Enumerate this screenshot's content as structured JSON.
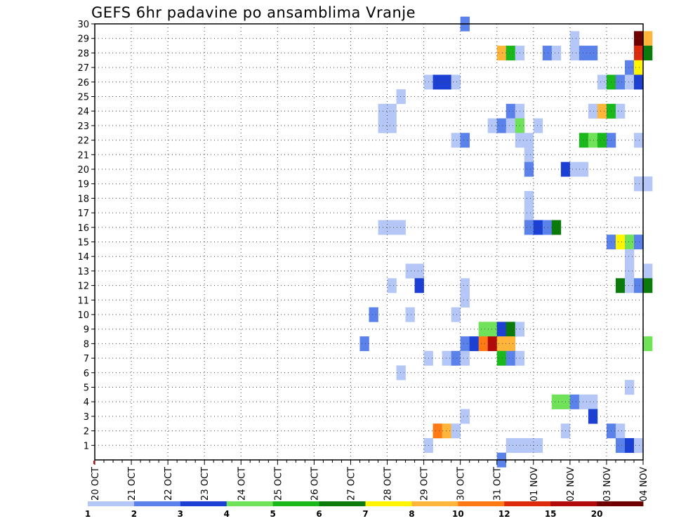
{
  "chart_data": {
    "type": "heatmap",
    "title": "GEFS 6hr padavine po ansamblima Vranje",
    "xlabel": "",
    "ylabel": "",
    "x_ticks": [
      "20 OCT",
      "21 OCT",
      "22 OCT",
      "23 OCT",
      "24 OCT",
      "25 OCT",
      "26 OCT",
      "27 OCT",
      "28 OCT",
      "29 OCT",
      "30 OCT",
      "31 OCT",
      "01 NOV",
      "02 NOV",
      "03 NOV",
      "04 NOV"
    ],
    "x_range_steps": [
      0,
      60
    ],
    "y_ticks": [
      1,
      2,
      3,
      4,
      5,
      6,
      7,
      8,
      9,
      10,
      11,
      12,
      13,
      14,
      15,
      16,
      17,
      18,
      19,
      20,
      21,
      22,
      23,
      24,
      25,
      26,
      27,
      28,
      29,
      30
    ],
    "ylim": [
      0,
      30
    ],
    "grid": true,
    "colorbar": {
      "colors": [
        "#b4c7f7",
        "#5a82ea",
        "#1c3fd4",
        "#6fe25a",
        "#1ab81a",
        "#0a7a0a",
        "#fff500",
        "#ffb43a",
        "#ff7a14",
        "#dc2a0a",
        "#b20a0a",
        "#6e0000"
      ],
      "labels": [
        "1",
        "2",
        "3",
        "4",
        "5",
        "6",
        "7",
        "8",
        "10",
        "12",
        "15",
        "20"
      ]
    },
    "cells": [
      {
        "member": 30,
        "step": 40,
        "level": 1
      },
      {
        "member": 29,
        "step": 59,
        "level": 11
      },
      {
        "member": 29,
        "step": 60,
        "level": 7
      },
      {
        "member": 28,
        "step": 44,
        "level": 7
      },
      {
        "member": 28,
        "step": 45,
        "level": 4
      },
      {
        "member": 28,
        "step": 46,
        "level": 0
      },
      {
        "member": 28,
        "step": 49,
        "level": 1
      },
      {
        "member": 28,
        "step": 50,
        "level": 0
      },
      {
        "member": 28,
        "step": 52,
        "level": 0
      },
      {
        "member": 28,
        "step": 53,
        "level": 1
      },
      {
        "member": 28,
        "step": 54,
        "level": 1
      },
      {
        "member": 28,
        "step": 59,
        "level": 9
      },
      {
        "member": 28,
        "step": 60,
        "level": 5
      },
      {
        "member": 29,
        "step": 52,
        "level": 0
      },
      {
        "member": 27,
        "step": 58,
        "level": 1
      },
      {
        "member": 27,
        "step": 59,
        "level": 6
      },
      {
        "member": 26,
        "step": 36,
        "level": 0
      },
      {
        "member": 26,
        "step": 37,
        "level": 2
      },
      {
        "member": 26,
        "step": 38,
        "level": 2
      },
      {
        "member": 26,
        "step": 39,
        "level": 0
      },
      {
        "member": 26,
        "step": 55,
        "level": 0
      },
      {
        "member": 26,
        "step": 56,
        "level": 4
      },
      {
        "member": 26,
        "step": 57,
        "level": 1
      },
      {
        "member": 26,
        "step": 58,
        "level": 0
      },
      {
        "member": 26,
        "step": 59,
        "level": 2
      },
      {
        "member": 25,
        "step": 33,
        "level": 0
      },
      {
        "member": 24,
        "step": 31,
        "level": 0
      },
      {
        "member": 24,
        "step": 32,
        "level": 0
      },
      {
        "member": 24,
        "step": 45,
        "level": 1
      },
      {
        "member": 24,
        "step": 46,
        "level": 0
      },
      {
        "member": 24,
        "step": 54,
        "level": 0
      },
      {
        "member": 24,
        "step": 55,
        "level": 7
      },
      {
        "member": 24,
        "step": 56,
        "level": 4
      },
      {
        "member": 24,
        "step": 57,
        "level": 0
      },
      {
        "member": 23,
        "step": 31,
        "level": 0
      },
      {
        "member": 23,
        "step": 32,
        "level": 0
      },
      {
        "member": 23,
        "step": 43,
        "level": 0
      },
      {
        "member": 23,
        "step": 44,
        "level": 1
      },
      {
        "member": 23,
        "step": 45,
        "level": 0
      },
      {
        "member": 23,
        "step": 46,
        "level": 3
      },
      {
        "member": 23,
        "step": 48,
        "level": 0
      },
      {
        "member": 22,
        "step": 39,
        "level": 0
      },
      {
        "member": 22,
        "step": 40,
        "level": 1
      },
      {
        "member": 22,
        "step": 46,
        "level": 0
      },
      {
        "member": 22,
        "step": 47,
        "level": 0
      },
      {
        "member": 22,
        "step": 53,
        "level": 4
      },
      {
        "member": 22,
        "step": 54,
        "level": 3
      },
      {
        "member": 22,
        "step": 55,
        "level": 4
      },
      {
        "member": 22,
        "step": 56,
        "level": 1
      },
      {
        "member": 22,
        "step": 59,
        "level": 0
      },
      {
        "member": 21,
        "step": 47,
        "level": 0
      },
      {
        "member": 20,
        "step": 47,
        "level": 1
      },
      {
        "member": 20,
        "step": 51,
        "level": 2
      },
      {
        "member": 20,
        "step": 52,
        "level": 0
      },
      {
        "member": 20,
        "step": 53,
        "level": 0
      },
      {
        "member": 19,
        "step": 59,
        "level": 0
      },
      {
        "member": 19,
        "step": 60,
        "level": 0
      },
      {
        "member": 18,
        "step": 47,
        "level": 0
      },
      {
        "member": 17,
        "step": 47,
        "level": 0
      },
      {
        "member": 16,
        "step": 31,
        "level": 0
      },
      {
        "member": 16,
        "step": 32,
        "level": 0
      },
      {
        "member": 16,
        "step": 33,
        "level": 0
      },
      {
        "member": 16,
        "step": 47,
        "level": 1
      },
      {
        "member": 16,
        "step": 48,
        "level": 2
      },
      {
        "member": 16,
        "step": 49,
        "level": 1
      },
      {
        "member": 16,
        "step": 50,
        "level": 5
      },
      {
        "member": 15,
        "step": 56,
        "level": 1
      },
      {
        "member": 15,
        "step": 57,
        "level": 6
      },
      {
        "member": 15,
        "step": 58,
        "level": 3
      },
      {
        "member": 15,
        "step": 59,
        "level": 1
      },
      {
        "member": 14,
        "step": 58,
        "level": 0
      },
      {
        "member": 13,
        "step": 34,
        "level": 0
      },
      {
        "member": 13,
        "step": 35,
        "level": 0
      },
      {
        "member": 13,
        "step": 58,
        "level": 0
      },
      {
        "member": 13,
        "step": 60,
        "level": 0
      },
      {
        "member": 12,
        "step": 32,
        "level": 0
      },
      {
        "member": 12,
        "step": 35,
        "level": 2
      },
      {
        "member": 12,
        "step": 40,
        "level": 0
      },
      {
        "member": 12,
        "step": 57,
        "level": 5
      },
      {
        "member": 12,
        "step": 58,
        "level": 0
      },
      {
        "member": 12,
        "step": 59,
        "level": 1
      },
      {
        "member": 12,
        "step": 60,
        "level": 5
      },
      {
        "member": 11,
        "step": 40,
        "level": 0
      },
      {
        "member": 10,
        "step": 30,
        "level": 1
      },
      {
        "member": 10,
        "step": 34,
        "level": 0
      },
      {
        "member": 10,
        "step": 39,
        "level": 0
      },
      {
        "member": 9,
        "step": 42,
        "level": 3
      },
      {
        "member": 9,
        "step": 43,
        "level": 3
      },
      {
        "member": 9,
        "step": 44,
        "level": 2
      },
      {
        "member": 9,
        "step": 45,
        "level": 5
      },
      {
        "member": 9,
        "step": 46,
        "level": 0
      },
      {
        "member": 8,
        "step": 29,
        "level": 1
      },
      {
        "member": 8,
        "step": 40,
        "level": 1
      },
      {
        "member": 8,
        "step": 41,
        "level": 2
      },
      {
        "member": 8,
        "step": 42,
        "level": 8
      },
      {
        "member": 8,
        "step": 43,
        "level": 10
      },
      {
        "member": 8,
        "step": 44,
        "level": 7
      },
      {
        "member": 8,
        "step": 45,
        "level": 7
      },
      {
        "member": 8,
        "step": 60,
        "level": 3
      },
      {
        "member": 7,
        "step": 36,
        "level": 0
      },
      {
        "member": 7,
        "step": 38,
        "level": 0
      },
      {
        "member": 7,
        "step": 39,
        "level": 1
      },
      {
        "member": 7,
        "step": 40,
        "level": 0
      },
      {
        "member": 7,
        "step": 44,
        "level": 4
      },
      {
        "member": 7,
        "step": 45,
        "level": 1
      },
      {
        "member": 7,
        "step": 46,
        "level": 0
      },
      {
        "member": 6,
        "step": 33,
        "level": 0
      },
      {
        "member": 5,
        "step": 58,
        "level": 0
      },
      {
        "member": 4,
        "step": 50,
        "level": 3
      },
      {
        "member": 4,
        "step": 51,
        "level": 3
      },
      {
        "member": 4,
        "step": 52,
        "level": 1
      },
      {
        "member": 4,
        "step": 53,
        "level": 0
      },
      {
        "member": 4,
        "step": 54,
        "level": 0
      },
      {
        "member": 3,
        "step": 40,
        "level": 0
      },
      {
        "member": 3,
        "step": 54,
        "level": 2
      },
      {
        "member": 2,
        "step": 37,
        "level": 8
      },
      {
        "member": 2,
        "step": 38,
        "level": 7
      },
      {
        "member": 2,
        "step": 39,
        "level": 0
      },
      {
        "member": 2,
        "step": 51,
        "level": 0
      },
      {
        "member": 2,
        "step": 56,
        "level": 1
      },
      {
        "member": 2,
        "step": 57,
        "level": 0
      },
      {
        "member": 1,
        "step": 36,
        "level": 0
      },
      {
        "member": 1,
        "step": 45,
        "level": 0
      },
      {
        "member": 1,
        "step": 46,
        "level": 0
      },
      {
        "member": 1,
        "step": 47,
        "level": 0
      },
      {
        "member": 1,
        "step": 48,
        "level": 0
      },
      {
        "member": 1,
        "step": 57,
        "level": 1
      },
      {
        "member": 1,
        "step": 58,
        "level": 2
      },
      {
        "member": 1,
        "step": 59,
        "level": 0
      },
      {
        "member": 0,
        "step": 44,
        "level": 1
      }
    ]
  }
}
